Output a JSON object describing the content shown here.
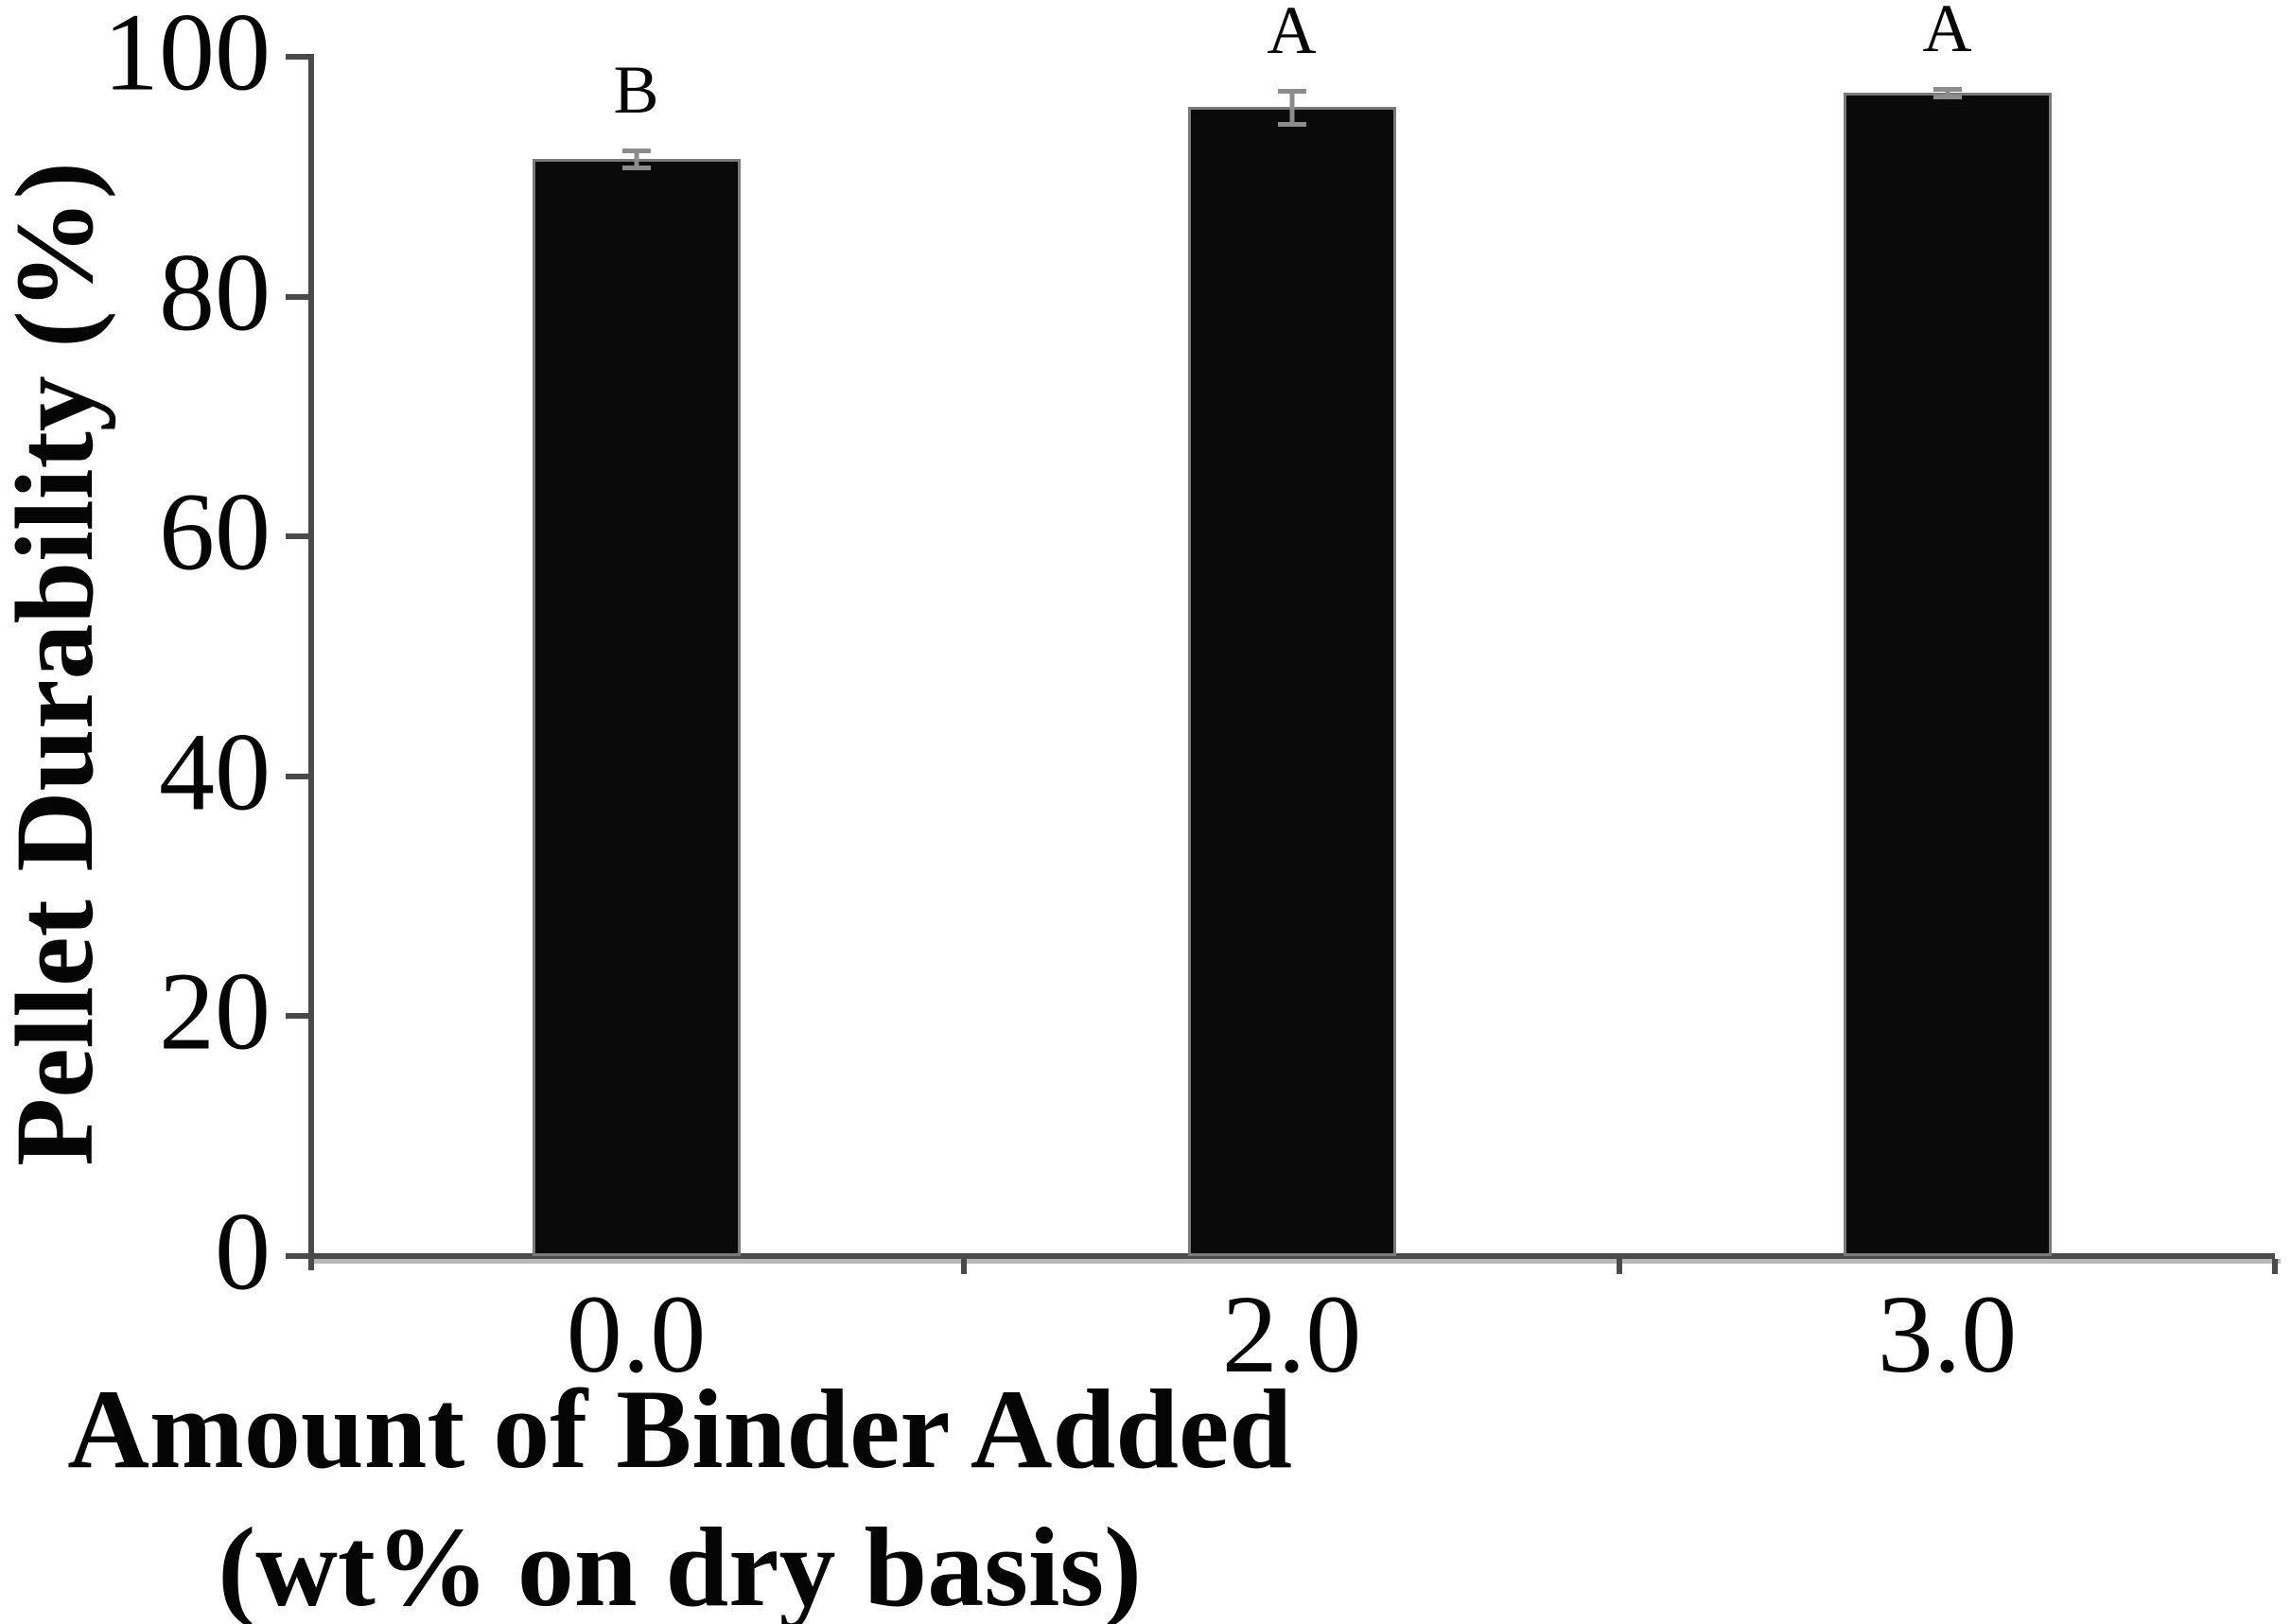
{
  "figure": {
    "background": "#ffffff",
    "text_color": "#050505"
  },
  "chart_data": {
    "type": "bar",
    "title": "",
    "ylabel": "Pellet Durability (%)",
    "xlabel_line1": "Amount of Binder Added",
    "xlabel_line2": "(wt% on dry basis)",
    "categories": [
      "0.0",
      "2.0",
      "3.0"
    ],
    "values": [
      91.5,
      95.8,
      97.0
    ],
    "errors": [
      0.7,
      1.4,
      0.3
    ],
    "sig_letters": [
      "B",
      "A",
      "A"
    ],
    "yticks": [
      "0",
      "20",
      "40",
      "60",
      "80",
      "100"
    ],
    "ytick_values": [
      0,
      20,
      40,
      60,
      80,
      100
    ],
    "ylim": [
      0,
      100
    ],
    "grid": false,
    "legend": "none",
    "bar_color": "#0a0a0a",
    "bar_edge_color": "#7a7a7a",
    "axis_color": "#4a4a4a",
    "axis_shadow_color": "#b8b8b8",
    "error_bar_color": "#8c8c8c"
  }
}
